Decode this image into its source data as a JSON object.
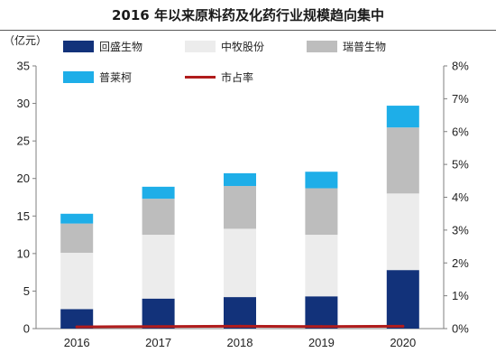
{
  "chart_data": {
    "type": "bar",
    "stacked": true,
    "title": "2016 年以来原料药及化药行业规模趋向集中",
    "left_unit": "（亿元）",
    "categories": [
      "2016",
      "2017",
      "2018",
      "2019",
      "2020"
    ],
    "ylim": [
      0,
      35
    ],
    "y_ticks": [
      0,
      5,
      10,
      15,
      20,
      25,
      30,
      35
    ],
    "y2lim": [
      0,
      8
    ],
    "y2_ticks": [
      "0%",
      "1%",
      "2%",
      "3%",
      "4%",
      "5%",
      "6%",
      "7%",
      "8%"
    ],
    "grid": false,
    "legend_position": "top",
    "series": [
      {
        "name": "回盛生物",
        "color": "#12327a",
        "values": [
          2.6,
          4.0,
          4.2,
          4.3,
          7.8
        ]
      },
      {
        "name": "中牧股份",
        "color": "#ececec",
        "values": [
          7.5,
          8.5,
          9.1,
          8.2,
          10.2
        ]
      },
      {
        "name": "瑞普生物",
        "color": "#bdbdbd",
        "values": [
          3.9,
          4.8,
          5.7,
          6.2,
          8.8
        ]
      },
      {
        "name": "普莱柯",
        "color": "#1eaee8",
        "values": [
          1.3,
          1.6,
          1.7,
          2.2,
          2.9
        ]
      }
    ],
    "line_series": {
      "name": "市占率",
      "color": "#b01c1c",
      "axis": "right",
      "values": [
        0.053,
        0.0635,
        0.0715,
        0.0625,
        0.0715
      ]
    }
  }
}
